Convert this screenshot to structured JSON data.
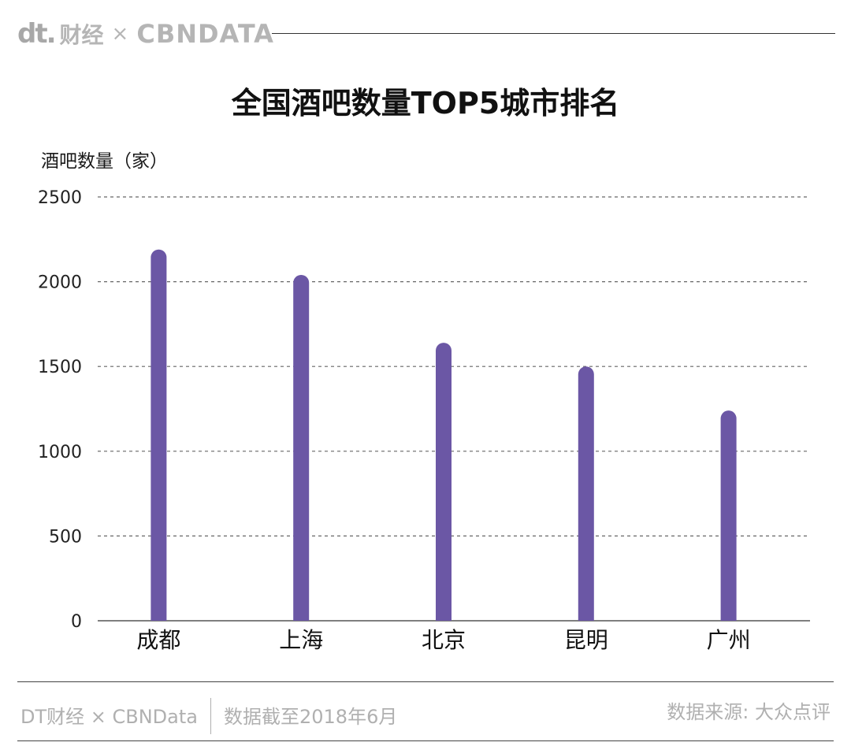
{
  "brand": {
    "dt": "dt.",
    "cn": "财经",
    "times": "×",
    "cbn": "CBNDATA"
  },
  "colors": {
    "bar": "#6b57a5",
    "grid": "#666666",
    "footer_text": "#b0b0b0"
  },
  "footer": {
    "credit": "DT财经 × CBNData",
    "cutoff": "数据截至2018年6月",
    "source": "数据来源: 大众点评"
  },
  "chart_data": {
    "type": "bar",
    "title": "全国酒吧数量TOP5城市排名",
    "ylabel": "酒吧数量（家）",
    "xlabel": "",
    "categories": [
      "成都",
      "上海",
      "北京",
      "昆明",
      "广州"
    ],
    "values": [
      2190,
      2040,
      1640,
      1500,
      1240
    ],
    "ylim": [
      0,
      2500
    ],
    "yticks": [
      0,
      500,
      1000,
      1500,
      2000,
      2500
    ],
    "grid": true,
    "grid_style": "dashed"
  }
}
